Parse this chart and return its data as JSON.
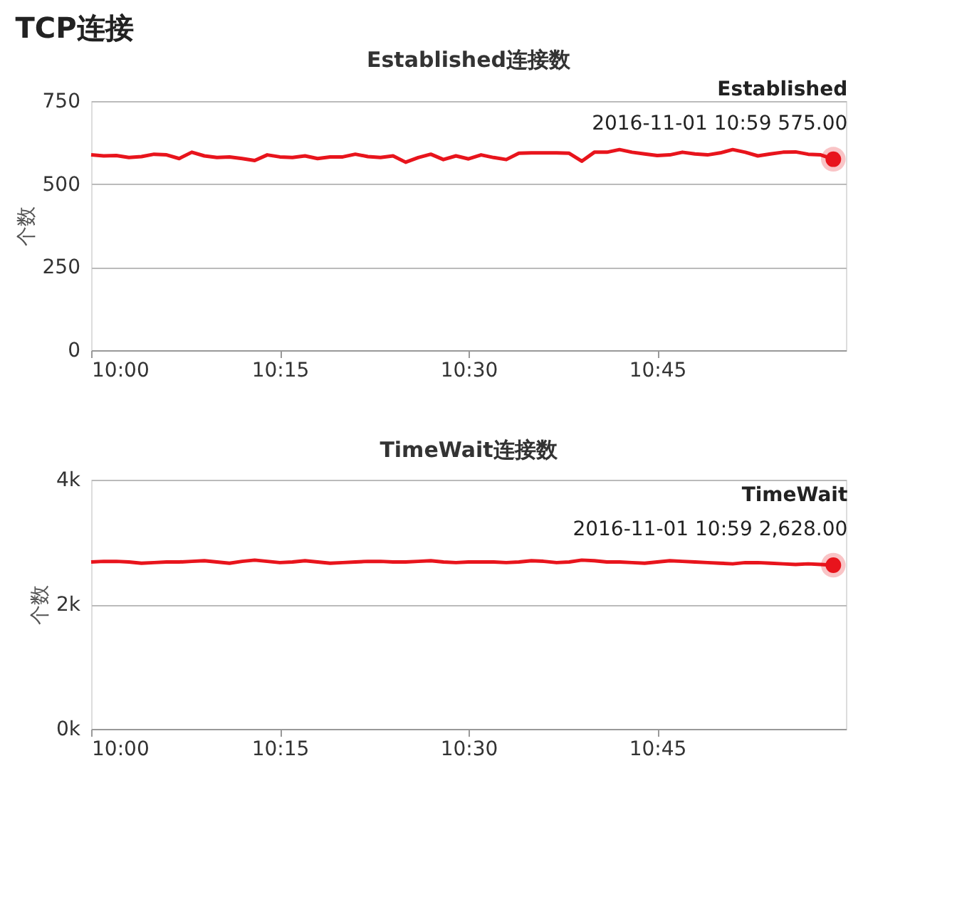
{
  "chart_data": [
    {
      "type": "other",
      "title": "TCP连接"
    },
    {
      "type": "line",
      "title": "Established连接数",
      "ylabel": "个数",
      "x": [
        "2016-11-01T10:00",
        "2016-11-01T10:01",
        "2016-11-01T10:02",
        "2016-11-01T10:03",
        "2016-11-01T10:04",
        "2016-11-01T10:05",
        "2016-11-01T10:06",
        "2016-11-01T10:07",
        "2016-11-01T10:08",
        "2016-11-01T10:09",
        "2016-11-01T10:10",
        "2016-11-01T10:11",
        "2016-11-01T10:12",
        "2016-11-01T10:13",
        "2016-11-01T10:14",
        "2016-11-01T10:15",
        "2016-11-01T10:16",
        "2016-11-01T10:17",
        "2016-11-01T10:18",
        "2016-11-01T10:19",
        "2016-11-01T10:20",
        "2016-11-01T10:21",
        "2016-11-01T10:22",
        "2016-11-01T10:23",
        "2016-11-01T10:24",
        "2016-11-01T10:25",
        "2016-11-01T10:26",
        "2016-11-01T10:27",
        "2016-11-01T10:28",
        "2016-11-01T10:29",
        "2016-11-01T10:30",
        "2016-11-01T10:31",
        "2016-11-01T10:32",
        "2016-11-01T10:33",
        "2016-11-01T10:34",
        "2016-11-01T10:35",
        "2016-11-01T10:36",
        "2016-11-01T10:37",
        "2016-11-01T10:38",
        "2016-11-01T10:39",
        "2016-11-01T10:40",
        "2016-11-01T10:41",
        "2016-11-01T10:42",
        "2016-11-01T10:43",
        "2016-11-01T10:44",
        "2016-11-01T10:45",
        "2016-11-01T10:46",
        "2016-11-01T10:47",
        "2016-11-01T10:48",
        "2016-11-01T10:49",
        "2016-11-01T10:50",
        "2016-11-01T10:51",
        "2016-11-01T10:52",
        "2016-11-01T10:53",
        "2016-11-01T10:54",
        "2016-11-01T10:55",
        "2016-11-01T10:56",
        "2016-11-01T10:57",
        "2016-11-01T10:58",
        "2016-11-01T10:59"
      ],
      "series": [
        {
          "name": "Established",
          "color": "#e8141c",
          "values": [
            588,
            585,
            586,
            580,
            583,
            590,
            588,
            577,
            596,
            585,
            580,
            582,
            577,
            571,
            588,
            582,
            580,
            585,
            577,
            582,
            582,
            590,
            583,
            580,
            585,
            566,
            580,
            590,
            574,
            585,
            576,
            588,
            580,
            574,
            593,
            594,
            594,
            594,
            593,
            569,
            596,
            596,
            604,
            596,
            591,
            586,
            588,
            596,
            591,
            588,
            594,
            604,
            596,
            585,
            591,
            596,
            597,
            590,
            588,
            575
          ]
        }
      ],
      "xlim": [
        "2016-11-01T10:00",
        "2016-11-01T11:00"
      ],
      "xticks": [
        {
          "value": "2016-11-01T10:00",
          "label": "10:00"
        },
        {
          "value": "2016-11-01T10:15",
          "label": "10:15"
        },
        {
          "value": "2016-11-01T10:30",
          "label": "10:30"
        },
        {
          "value": "2016-11-01T10:45",
          "label": "10:45"
        }
      ],
      "ylim": [
        0,
        750
      ],
      "yticks": [
        0,
        250,
        500,
        750
      ],
      "grid": "y",
      "legend": false,
      "marker": "none",
      "line_style": "solid",
      "annotations": [
        {
          "text": "2016-11-01 10:59 575.00",
          "x": "2016-11-01T10:59",
          "y": 575
        }
      ]
    },
    {
      "type": "line",
      "title": "TimeWait连接数",
      "ylabel": "个数",
      "x": [
        "2016-11-01T10:00",
        "2016-11-01T10:01",
        "2016-11-01T10:02",
        "2016-11-01T10:03",
        "2016-11-01T10:04",
        "2016-11-01T10:05",
        "2016-11-01T10:06",
        "2016-11-01T10:07",
        "2016-11-01T10:08",
        "2016-11-01T10:09",
        "2016-11-01T10:10",
        "2016-11-01T10:11",
        "2016-11-01T10:12",
        "2016-11-01T10:13",
        "2016-11-01T10:14",
        "2016-11-01T10:15",
        "2016-11-01T10:16",
        "2016-11-01T10:17",
        "2016-11-01T10:18",
        "2016-11-01T10:19",
        "2016-11-01T10:20",
        "2016-11-01T10:21",
        "2016-11-01T10:22",
        "2016-11-01T10:23",
        "2016-11-01T10:24",
        "2016-11-01T10:25",
        "2016-11-01T10:26",
        "2016-11-01T10:27",
        "2016-11-01T10:28",
        "2016-11-01T10:29",
        "2016-11-01T10:30",
        "2016-11-01T10:31",
        "2016-11-01T10:32",
        "2016-11-01T10:33",
        "2016-11-01T10:34",
        "2016-11-01T10:35",
        "2016-11-01T10:36",
        "2016-11-01T10:37",
        "2016-11-01T10:38",
        "2016-11-01T10:39",
        "2016-11-01T10:40",
        "2016-11-01T10:41",
        "2016-11-01T10:42",
        "2016-11-01T10:43",
        "2016-11-01T10:44",
        "2016-11-01T10:45",
        "2016-11-01T10:46",
        "2016-11-01T10:47",
        "2016-11-01T10:48",
        "2016-11-01T10:49",
        "2016-11-01T10:50",
        "2016-11-01T10:51",
        "2016-11-01T10:52",
        "2016-11-01T10:53",
        "2016-11-01T10:54",
        "2016-11-01T10:55",
        "2016-11-01T10:56",
        "2016-11-01T10:57",
        "2016-11-01T10:58",
        "2016-11-01T10:59"
      ],
      "series": [
        {
          "name": "TimeWait",
          "color": "#e8141c",
          "values": [
            2680,
            2690,
            2690,
            2680,
            2660,
            2670,
            2680,
            2680,
            2690,
            2700,
            2680,
            2660,
            2690,
            2710,
            2690,
            2670,
            2680,
            2700,
            2680,
            2660,
            2670,
            2680,
            2690,
            2690,
            2680,
            2680,
            2690,
            2700,
            2680,
            2670,
            2680,
            2680,
            2680,
            2670,
            2680,
            2700,
            2690,
            2670,
            2680,
            2710,
            2700,
            2680,
            2680,
            2670,
            2660,
            2680,
            2700,
            2690,
            2680,
            2670,
            2660,
            2650,
            2670,
            2670,
            2660,
            2650,
            2640,
            2650,
            2640,
            2628
          ]
        }
      ],
      "xlim": [
        "2016-11-01T10:00",
        "2016-11-01T11:00"
      ],
      "xticks": [
        {
          "value": "2016-11-01T10:00",
          "label": "10:00"
        },
        {
          "value": "2016-11-01T10:15",
          "label": "10:15"
        },
        {
          "value": "2016-11-01T10:30",
          "label": "10:30"
        },
        {
          "value": "2016-11-01T10:45",
          "label": "10:45"
        }
      ],
      "ylim": [
        0,
        4000
      ],
      "yticks": [
        {
          "value": 0,
          "label": "0k"
        },
        {
          "value": 2000,
          "label": "2k"
        },
        {
          "value": 4000,
          "label": "4k"
        }
      ],
      "grid": "y",
      "legend": false,
      "marker": "none",
      "line_style": "solid",
      "annotations": [
        {
          "text": "2016-11-01 10:59 2,628.00",
          "x": "2016-11-01T10:59",
          "y": 2628
        }
      ]
    }
  ]
}
